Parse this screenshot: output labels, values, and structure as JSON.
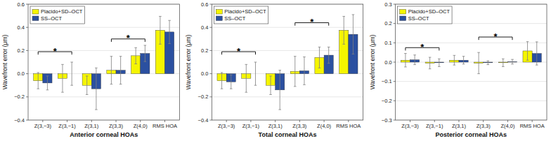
{
  "chart_data": [
    {
      "type": "bar",
      "xlabel": "Anterior corneal HOAs",
      "ylabel": "Wavefront error (μm)",
      "categories": [
        "Z(3,−3)",
        "Z(3,−1)",
        "Z(3,1)",
        "Z(3,3)",
        "Z(4,0)",
        "RMS HOA"
      ],
      "series": [
        {
          "name": "Placido+SD–OCT",
          "color": "#F5F500",
          "values": [
            -0.06,
            -0.04,
            -0.1,
            0.03,
            0.155,
            0.375
          ],
          "errors": [
            0.07,
            0.12,
            0.08,
            0.12,
            0.07,
            0.12
          ]
        },
        {
          "name": "SS–OCT",
          "color": "#2B50A0",
          "values": [
            -0.08,
            0.0,
            -0.13,
            0.03,
            0.175,
            0.36
          ],
          "errors": [
            0.06,
            0.1,
            0.18,
            0.12,
            0.07,
            0.1
          ]
        }
      ],
      "annotations": [
        {
          "text": "*",
          "categories": [
            "Z(3,−3)",
            "Z(3,−1)"
          ],
          "y": 0.19
        },
        {
          "text": "*",
          "categories": [
            "Z(3,3)",
            "Z(4,0)"
          ],
          "y": 0.3
        }
      ],
      "ylim": [
        -0.4,
        0.6
      ],
      "yticks": [
        {
          "value": -0.4,
          "label": "−0.4"
        },
        {
          "value": -0.2,
          "label": "−0.2"
        },
        {
          "value": 0.0,
          "label": "0.0"
        },
        0.2,
        0.4,
        0.6
      ],
      "grid": true,
      "legend": "upper left"
    },
    {
      "type": "bar",
      "xlabel": "Total corneal HOAs",
      "ylabel": "Wavefront error (μm)",
      "categories": [
        "Z(3,−3)",
        "Z(3,−1)",
        "Z(3,1)",
        "Z(3,3)",
        "Z(4,0)",
        "RMS HOA"
      ],
      "series": [
        {
          "name": "Placido+SD–OCT",
          "color": "#F5F500",
          "values": [
            -0.06,
            -0.04,
            -0.1,
            0.02,
            0.14,
            0.375
          ],
          "errors": [
            0.07,
            0.12,
            0.08,
            0.13,
            0.09,
            0.12
          ]
        },
        {
          "name": "SS–OCT",
          "color": "#2B50A0",
          "values": [
            -0.07,
            0.0,
            -0.14,
            0.025,
            0.16,
            0.34
          ],
          "errors": [
            0.06,
            0.1,
            0.17,
            0.12,
            0.07,
            0.17
          ]
        }
      ],
      "annotations": [
        {
          "text": "*",
          "categories": [
            "Z(3,−3)",
            "Z(3,−1)"
          ],
          "y": 0.19
        },
        {
          "text": "*",
          "categories": [
            "Z(3,3)",
            "Z(4,0)"
          ],
          "y": 0.44
        }
      ],
      "ylim": [
        -0.4,
        0.6
      ],
      "yticks": [
        {
          "value": -0.4,
          "label": "−0.4"
        },
        {
          "value": -0.2,
          "label": "−0.2"
        },
        {
          "value": 0.0,
          "label": "0.0"
        },
        0.2,
        0.4,
        0.6
      ],
      "grid": true,
      "legend": "upper left"
    },
    {
      "type": "bar",
      "xlabel": "Posterior corneal HOAs",
      "ylabel": "Wavefront error (μm)",
      "categories": [
        "Z(3,−3)",
        "Z(3,−1)",
        "Z(3,1)",
        "Z(3,3)",
        "Z(4,0)",
        "RMS HOA"
      ],
      "series": [
        {
          "name": "Placido+SD–OCT",
          "color": "#F5F500",
          "values": [
            0.01,
            -0.005,
            0.01,
            -0.005,
            -0.003,
            0.058
          ],
          "errors": [
            0.035,
            0.03,
            0.025,
            0.055,
            0.02,
            0.048
          ]
        },
        {
          "name": "SS–OCT",
          "color": "#2B50A0",
          "values": [
            0.012,
            -0.003,
            0.01,
            -0.003,
            0.002,
            0.045
          ],
          "errors": [
            0.025,
            0.02,
            0.02,
            0.01,
            0.012,
            0.06
          ]
        }
      ],
      "annotations": [
        {
          "text": "*",
          "categories": [
            "Z(3,−3)",
            "Z(3,−1)"
          ],
          "y": 0.075
        },
        {
          "text": "*",
          "categories": [
            "Z(3,3)",
            "Z(4,0)"
          ],
          "y": 0.13
        }
      ],
      "ylim": [
        -0.3,
        0.3
      ],
      "yticks": [
        {
          "value": -0.3,
          "label": "−0.3"
        },
        {
          "value": -0.2,
          "label": "−0.2"
        },
        {
          "value": -0.1,
          "label": "−0.1"
        },
        {
          "value": 0.0,
          "label": "0.0"
        },
        0.1,
        0.2,
        0.3
      ],
      "grid": true,
      "legend": "upper left"
    }
  ]
}
